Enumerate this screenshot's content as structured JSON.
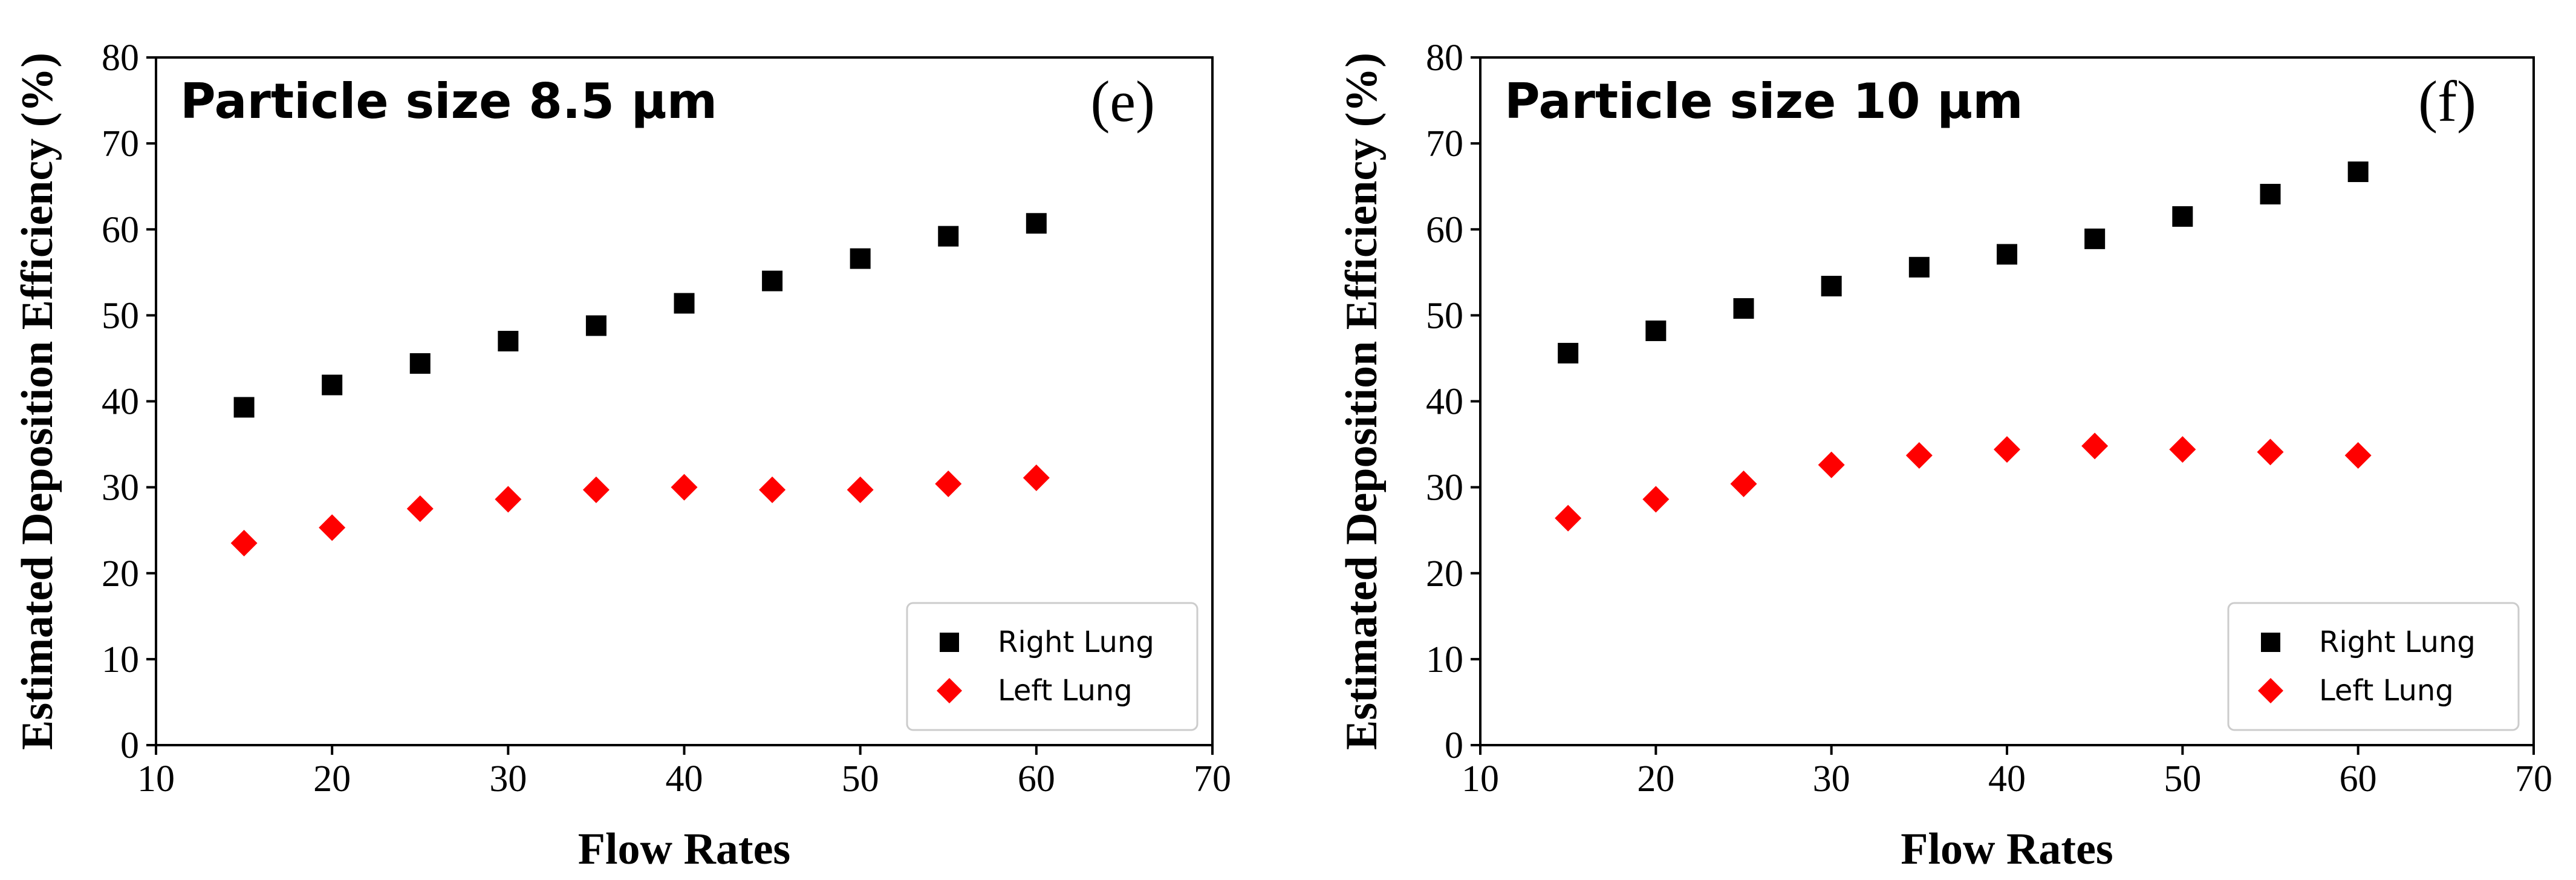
{
  "chart_data": [
    {
      "type": "scatter",
      "title": "Particle size 8.5 μm",
      "panel_tag": "(e)",
      "xlabel": "Flow Rates",
      "ylabel": "Estimated Deposition Efficiency (%)",
      "xlim": [
        10,
        70
      ],
      "ylim": [
        0,
        80
      ],
      "xticks": [
        "10",
        "20",
        "30",
        "40",
        "50",
        "60",
        "70"
      ],
      "yticks": [
        "0",
        "10",
        "20",
        "30",
        "40",
        "50",
        "60",
        "70",
        "80"
      ],
      "legend_position": "lower-right",
      "x": [
        15,
        20,
        25,
        30,
        35,
        40,
        45,
        50,
        55,
        60
      ],
      "series": [
        {
          "name": "Right Lung",
          "marker": "square",
          "color": "#000000",
          "values": [
            39.3,
            41.9,
            44.4,
            47.0,
            48.8,
            51.4,
            54.0,
            56.6,
            59.2,
            60.7
          ]
        },
        {
          "name": "Left Lung",
          "marker": "diamond",
          "color": "#ff0000",
          "values": [
            23.5,
            25.3,
            27.5,
            28.6,
            29.7,
            30.0,
            29.7,
            29.7,
            30.4,
            31.1
          ]
        }
      ]
    },
    {
      "type": "scatter",
      "title": "Particle size 10 μm",
      "panel_tag": "(f)",
      "xlabel": "Flow Rates",
      "ylabel": "Estimated Deposition Efficiency (%)",
      "xlim": [
        10,
        70
      ],
      "ylim": [
        0,
        80
      ],
      "xticks": [
        "10",
        "20",
        "30",
        "40",
        "50",
        "60",
        "70"
      ],
      "yticks": [
        "0",
        "10",
        "20",
        "30",
        "40",
        "50",
        "60",
        "70",
        "80"
      ],
      "legend_position": "lower-right",
      "x": [
        15,
        20,
        25,
        30,
        35,
        40,
        45,
        50,
        55,
        60
      ],
      "series": [
        {
          "name": "Right Lung",
          "marker": "square",
          "color": "#000000",
          "values": [
            45.6,
            48.2,
            50.8,
            53.4,
            55.6,
            57.1,
            58.9,
            61.5,
            64.1,
            66.7
          ]
        },
        {
          "name": "Left Lung",
          "marker": "diamond",
          "color": "#ff0000",
          "values": [
            26.4,
            28.6,
            30.4,
            32.6,
            33.7,
            34.4,
            34.8,
            34.4,
            34.1,
            33.7
          ]
        }
      ]
    }
  ]
}
